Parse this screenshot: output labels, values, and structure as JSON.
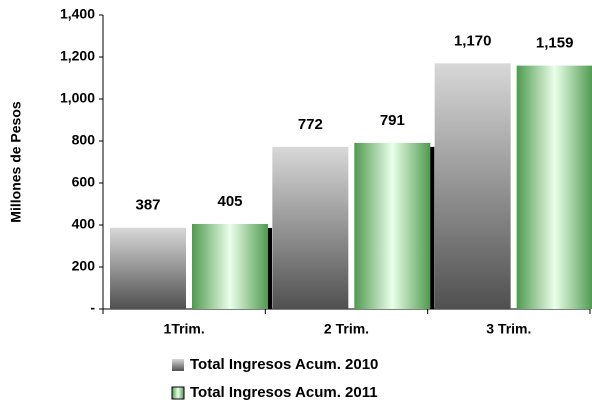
{
  "chart_data": {
    "type": "bar",
    "y_label": "Millones de Pesos",
    "categories": [
      "1Trim.",
      "2 Trim.",
      "3 Trim."
    ],
    "series": [
      {
        "name": "Total Ingresos Acum. 2010",
        "color": "#8c8c8c",
        "values": [
          387,
          772,
          1170
        ],
        "value_labels": [
          "387",
          "772",
          "1,170"
        ]
      },
      {
        "name": "Total Ingresos Acum. 2011",
        "color": "#8fd08f",
        "values": [
          405,
          791,
          1159
        ],
        "value_labels": [
          "405",
          "791",
          "1,159"
        ]
      }
    ],
    "ylim": [
      0,
      1400
    ],
    "yticks": [
      {
        "value": 0,
        "label": "-"
      },
      200,
      400,
      600,
      800,
      {
        "value": 1000,
        "label": "1,000"
      },
      {
        "value": 1200,
        "label": "1,200"
      },
      {
        "value": 1400,
        "label": "1,400"
      }
    ],
    "legend": "bottom"
  }
}
